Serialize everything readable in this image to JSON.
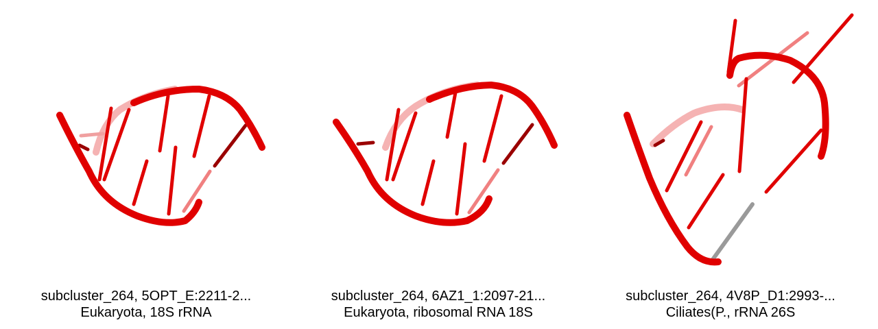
{
  "panels": [
    {
      "line1": "subcluster_264, 5OPT_E:2211-2...",
      "line2": "Eukaryota, 18S rRNA"
    },
    {
      "line1": "subcluster_264, 6AZ1_1:2097-21...",
      "line2": "Eukaryota, ribosomal RNA 18S"
    },
    {
      "line1": "subcluster_264, 4V8P_D1:2993-...",
      "line2": "Ciliates(P., rRNA 26S"
    }
  ],
  "colors": {
    "backbone": "#e00000",
    "dark": "#9a0000",
    "light": "#f08080",
    "gray": "#9a9a9a"
  }
}
